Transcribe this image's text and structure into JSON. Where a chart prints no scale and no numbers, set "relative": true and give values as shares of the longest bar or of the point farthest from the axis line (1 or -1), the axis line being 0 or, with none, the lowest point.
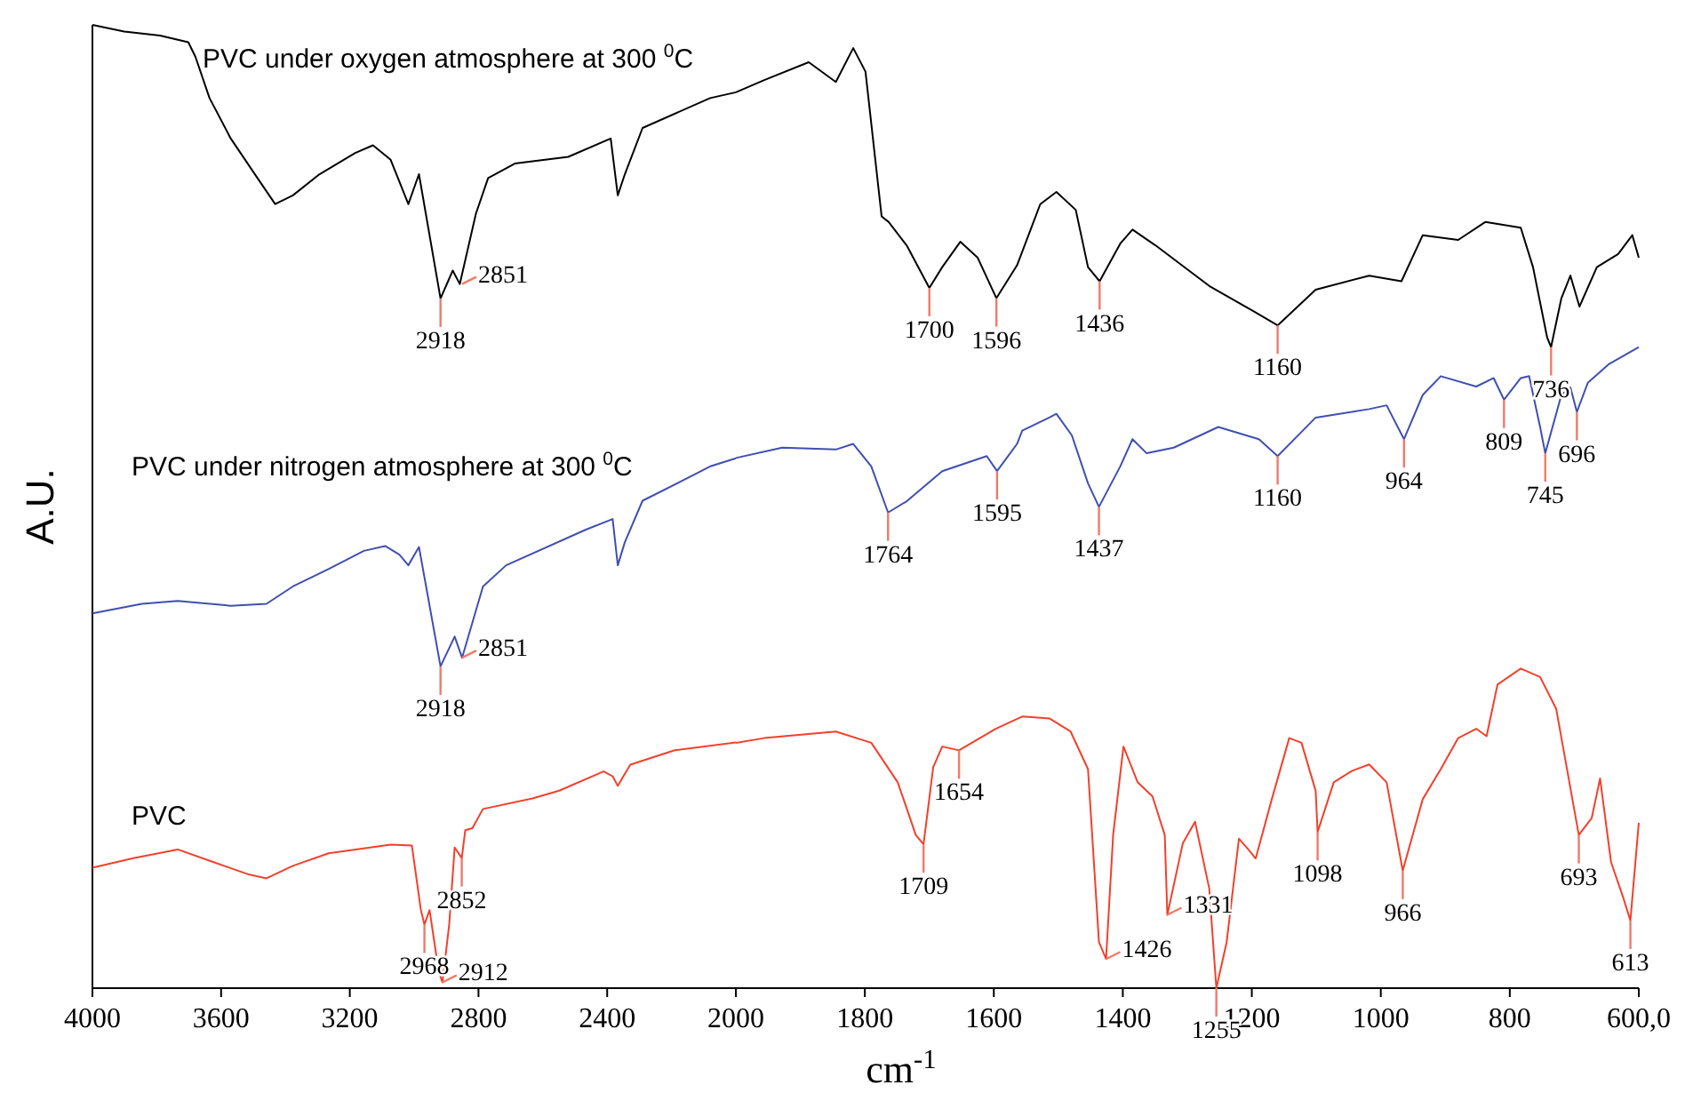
{
  "chart_data": [
    {
      "type": "line",
      "relative": true,
      "ylabel": "A.U.",
      "xlim": [
        4000,
        2000
      ],
      "xticks": [
        4000,
        3600,
        3200,
        2800,
        2400
      ],
      "series": [
        {
          "name": "PVC under oxygen atmosphere at 300 $^{0}$C",
          "color": "#000000",
          "x": [
            4000,
            3901,
            3790,
            3702,
            3680,
            3636,
            3570,
            3487,
            3432,
            3377,
            3294,
            3183,
            3128,
            3073,
            3018,
            2985,
            2918,
            2880,
            2858,
            2808,
            2770,
            2687,
            2521,
            2389,
            2367,
            2345,
            2290,
            2080,
            2000
          ],
          "values": [
            1.0,
            0.993,
            0.989,
            0.982,
            0.967,
            0.924,
            0.882,
            0.841,
            0.814,
            0.823,
            0.845,
            0.867,
            0.875,
            0.86,
            0.814,
            0.845,
            0.716,
            0.745,
            0.731,
            0.804,
            0.841,
            0.856,
            0.863,
            0.882,
            0.823,
            0.845,
            0.893,
            0.924,
            0.93
          ]
        },
        {
          "name": "PVC under nitrogen atmosphere at 300 $^{0}$C",
          "color": "#3f4fb0",
          "x": [
            4000,
            3846,
            3735,
            3570,
            3459,
            3377,
            3266,
            3156,
            3090,
            3046,
            3018,
            2985,
            2918,
            2874,
            2851,
            2786,
            2714,
            2466,
            2383,
            2367,
            2345,
            2290,
            2077,
            2000
          ],
          "values": [
            0.389,
            0.399,
            0.402,
            0.397,
            0.399,
            0.417,
            0.435,
            0.454,
            0.459,
            0.45,
            0.439,
            0.458,
            0.334,
            0.365,
            0.343,
            0.417,
            0.439,
            0.476,
            0.487,
            0.439,
            0.463,
            0.506,
            0.542,
            0.55
          ]
        },
        {
          "name": "PVC",
          "color": "#f2402c",
          "x": [
            4000,
            3873,
            3735,
            3625,
            3514,
            3459,
            3377,
            3266,
            3073,
            3007,
            2979,
            2968,
            2952,
            2924,
            2912,
            2891,
            2874,
            2852,
            2841,
            2819,
            2786,
            2632,
            2549,
            2411,
            2383,
            2367,
            2328,
            2190,
            2000
          ],
          "values": [
            0.125,
            0.135,
            0.144,
            0.131,
            0.118,
            0.114,
            0.127,
            0.14,
            0.149,
            0.148,
            0.081,
            0.066,
            0.081,
            0.018,
            0.006,
            0.066,
            0.146,
            0.135,
            0.164,
            0.166,
            0.186,
            0.197,
            0.205,
            0.225,
            0.22,
            0.21,
            0.232,
            0.247,
            0.255
          ]
        }
      ],
      "annotations": [
        {
          "text": "2918",
          "x": 2918,
          "y": 0.716
        },
        {
          "text": "2851",
          "x": 2851,
          "y": 0.731
        },
        {
          "text": "2918",
          "x": 2918,
          "y": 0.334
        },
        {
          "text": "2851",
          "x": 2851,
          "y": 0.343
        },
        {
          "text": "2968",
          "x": 2968,
          "y": 0.066
        },
        {
          "text": "2912",
          "x": 2912,
          "y": 0.006
        },
        {
          "text": "2852",
          "x": 2852,
          "y": 0.135
        }
      ]
    },
    {
      "type": "line",
      "relative": true,
      "xlabel": "cm$^{-1}$",
      "xlim": [
        2000,
        600
      ],
      "xticks": [
        2000,
        1800,
        1600,
        1400,
        1200,
        1000,
        800,
        {
          "value": 600,
          "label": "600,0"
        }
      ],
      "series": [
        {
          "color": "#000000",
          "x": [
            2000,
            1956,
            1887,
            1845,
            1818,
            1799,
            1774,
            1763,
            1735,
            1700,
            1680,
            1652,
            1625,
            1596,
            1564,
            1528,
            1503,
            1473,
            1454,
            1436,
            1404,
            1385,
            1349,
            1266,
            1197,
            1160,
            1101,
            1018,
            968,
            935,
            880,
            838,
            783,
            764,
            742,
            736,
            720,
            706,
            692,
            665,
            632,
            610,
            600
          ],
          "values": [
            0.953,
            0.966,
            0.985,
            0.964,
            1.0,
            0.975,
            0.821,
            0.815,
            0.79,
            0.745,
            0.767,
            0.794,
            0.777,
            0.734,
            0.769,
            0.834,
            0.847,
            0.828,
            0.767,
            0.752,
            0.792,
            0.807,
            0.79,
            0.747,
            0.72,
            0.705,
            0.743,
            0.758,
            0.752,
            0.801,
            0.796,
            0.815,
            0.809,
            0.767,
            0.692,
            0.682,
            0.734,
            0.758,
            0.725,
            0.767,
            0.781,
            0.801,
            0.777
          ]
        },
        {
          "color": "#3f4fb0",
          "x": [
            2000,
            1928,
            1845,
            1818,
            1790,
            1764,
            1735,
            1680,
            1611,
            1595,
            1564,
            1556,
            1514,
            1503,
            1479,
            1454,
            1437,
            1404,
            1385,
            1363,
            1321,
            1252,
            1189,
            1160,
            1101,
            1018,
            991,
            964,
            935,
            907,
            852,
            825,
            809,
            783,
            770,
            753,
            745,
            720,
            706,
            696,
            679,
            646,
            600
          ],
          "values": [
            0.564,
            0.575,
            0.573,
            0.579,
            0.555,
            0.506,
            0.518,
            0.55,
            0.566,
            0.55,
            0.579,
            0.593,
            0.607,
            0.611,
            0.588,
            0.537,
            0.512,
            0.555,
            0.584,
            0.569,
            0.575,
            0.597,
            0.584,
            0.566,
            0.607,
            0.616,
            0.62,
            0.584,
            0.631,
            0.651,
            0.64,
            0.649,
            0.626,
            0.649,
            0.651,
            0.597,
            0.569,
            0.631,
            0.639,
            0.613,
            0.644,
            0.664,
            0.682
          ]
        },
        {
          "color": "#f2402c",
          "x": [
            2000,
            1956,
            1845,
            1790,
            1749,
            1721,
            1709,
            1694,
            1680,
            1654,
            1597,
            1556,
            1514,
            1481,
            1454,
            1437,
            1426,
            1415,
            1399,
            1377,
            1354,
            1335,
            1331,
            1307,
            1288,
            1266,
            1255,
            1239,
            1220,
            1206,
            1194,
            1169,
            1142,
            1123,
            1101,
            1098,
            1073,
            1045,
            1018,
            991,
            966,
            935,
            907,
            880,
            852,
            836,
            819,
            783,
            753,
            728,
            693,
            673,
            660,
            643,
            624,
            613,
            600
          ],
          "values": [
            0.261,
            0.266,
            0.273,
            0.261,
            0.219,
            0.163,
            0.153,
            0.235,
            0.257,
            0.253,
            0.276,
            0.289,
            0.287,
            0.273,
            0.233,
            0.049,
            0.031,
            0.163,
            0.257,
            0.219,
            0.204,
            0.163,
            0.078,
            0.154,
            0.177,
            0.106,
            0.0,
            0.049,
            0.159,
            0.148,
            0.138,
            0.201,
            0.266,
            0.261,
            0.21,
            0.166,
            0.219,
            0.231,
            0.238,
            0.219,
            0.125,
            0.201,
            0.233,
            0.266,
            0.276,
            0.268,
            0.323,
            0.34,
            0.331,
            0.297,
            0.163,
            0.181,
            0.223,
            0.134,
            0.096,
            0.072,
            0.176
          ]
        }
      ],
      "annotations": [
        {
          "text": "1700",
          "x": 1700,
          "y": 0.745
        },
        {
          "text": "1596",
          "x": 1596,
          "y": 0.734
        },
        {
          "text": "1436",
          "x": 1436,
          "y": 0.752
        },
        {
          "text": "1160",
          "x": 1160,
          "y": 0.705
        },
        {
          "text": "736",
          "x": 736,
          "y": 0.682
        },
        {
          "text": "1764",
          "x": 1764,
          "y": 0.506
        },
        {
          "text": "1595",
          "x": 1595,
          "y": 0.55
        },
        {
          "text": "1437",
          "x": 1437,
          "y": 0.512
        },
        {
          "text": "1160",
          "x": 1160,
          "y": 0.566
        },
        {
          "text": "964",
          "x": 964,
          "y": 0.584
        },
        {
          "text": "809",
          "x": 809,
          "y": 0.626
        },
        {
          "text": "745",
          "x": 745,
          "y": 0.569
        },
        {
          "text": "696",
          "x": 696,
          "y": 0.613
        },
        {
          "text": "1709",
          "x": 1709,
          "y": 0.153
        },
        {
          "text": "1654",
          "x": 1654,
          "y": 0.253
        },
        {
          "text": "1426",
          "x": 1426,
          "y": 0.031
        },
        {
          "text": "1331",
          "x": 1331,
          "y": 0.078
        },
        {
          "text": "1255",
          "x": 1255,
          "y": 0.0
        },
        {
          "text": "1098",
          "x": 1098,
          "y": 0.166
        },
        {
          "text": "966",
          "x": 966,
          "y": 0.125
        },
        {
          "text": "693",
          "x": 693,
          "y": 0.163
        },
        {
          "text": "613",
          "x": 613,
          "y": 0.072
        }
      ]
    }
  ]
}
